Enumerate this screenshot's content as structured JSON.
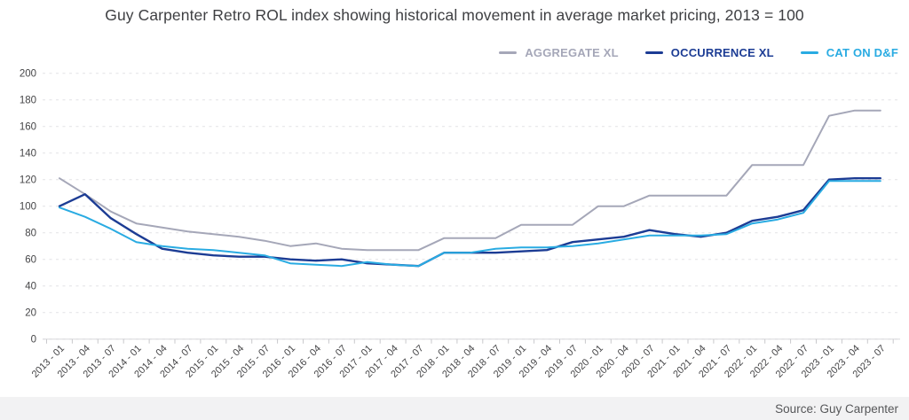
{
  "title": "Guy Carpenter Retro ROL index showing historical movement in average market pricing, 2013 = 100",
  "source": "Source: Guy Carpenter",
  "chart_data": {
    "type": "line",
    "title": "Guy Carpenter Retro ROL index showing historical movement in average market pricing, 2013 = 100",
    "xlabel": "",
    "ylabel": "",
    "ylim": [
      0,
      200
    ],
    "ytick_step": 20,
    "grid": "horizontal-dashed",
    "legend_position": "top-right",
    "categories": [
      "2013 - 01",
      "2013 - 04",
      "2013 - 07",
      "2014 - 01",
      "2014 - 04",
      "2014 - 07",
      "2015 - 01",
      "2015 - 04",
      "2015 - 07",
      "2016 - 01",
      "2016 - 04",
      "2016 - 07",
      "2017 - 01",
      "2017 - 04",
      "2017 - 07",
      "2018 - 01",
      "2018 - 04",
      "2018 - 07",
      "2019 - 01",
      "2019 - 04",
      "2019 - 07",
      "2020 - 01",
      "2020 - 04",
      "2020 - 07",
      "2021 - 01",
      "2021 - 04",
      "2021 - 07",
      "2022 - 01",
      "2022 - 04",
      "2022 - 07",
      "2023 - 01",
      "2023 - 04",
      "2023 - 07"
    ],
    "series": [
      {
        "name": "AGGREGATE XL",
        "color": "#a5a7b8",
        "values": [
          121,
          109,
          96,
          87,
          84,
          81,
          79,
          77,
          74,
          70,
          72,
          68,
          67,
          67,
          67,
          76,
          76,
          76,
          86,
          86,
          86,
          100,
          100,
          108,
          108,
          108,
          108,
          131,
          131,
          131,
          168,
          172,
          172
        ]
      },
      {
        "name": "OCCURRENCE XL",
        "color": "#1c3c94",
        "values": [
          100,
          109,
          91,
          79,
          68,
          65,
          63,
          62,
          62,
          60,
          59,
          60,
          57,
          56,
          55,
          65,
          65,
          65,
          66,
          67,
          73,
          75,
          77,
          82,
          79,
          77,
          80,
          89,
          92,
          97,
          120,
          121,
          121
        ]
      },
      {
        "name": "CAT ON D&F",
        "color": "#29abe2",
        "values": [
          99,
          92,
          83,
          73,
          70,
          68,
          67,
          65,
          63,
          57,
          56,
          55,
          58,
          56,
          55,
          65,
          65,
          68,
          69,
          69,
          70,
          72,
          75,
          78,
          78,
          78,
          79,
          87,
          90,
          95,
          119,
          119,
          119
        ]
      }
    ]
  }
}
